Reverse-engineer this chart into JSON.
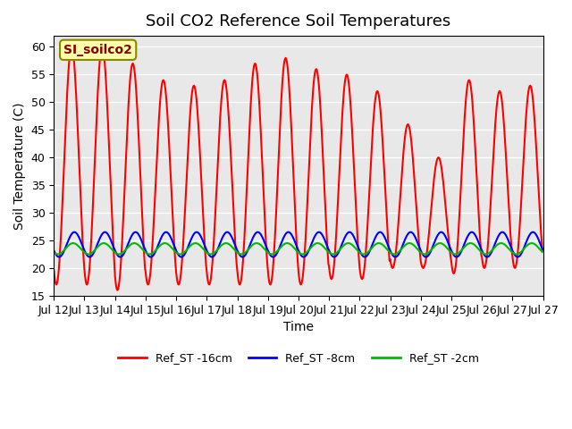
{
  "title": "Soil CO2 Reference Soil Temperatures",
  "xlabel": "Time",
  "ylabel": "Soil Temperature (C)",
  "ylim": [
    15,
    62
  ],
  "yticks": [
    15,
    20,
    25,
    30,
    35,
    40,
    45,
    50,
    55,
    60
  ],
  "legend_label_box": "SI_soilco2",
  "series": {
    "Ref_ST -16cm": {
      "color": "#ff0000",
      "linewidth": 1.5
    },
    "Ref_ST -8cm": {
      "color": "#0000ff",
      "linewidth": 1.5
    },
    "Ref_ST -2cm": {
      "color": "#00bb00",
      "linewidth": 1.5
    }
  },
  "xtick_labels": [
    "Jul 12",
    "Jul 13",
    "Jul 14",
    "Jul 15",
    "Jul 16",
    "Jul 17",
    "Jul 18",
    "Jul 19",
    "Jul 20",
    "Jul 21",
    "Jul 22",
    "Jul 23",
    "Jul 24",
    "Jul 25",
    "Jul 26",
    "Jul 27"
  ],
  "xtick_positions": [
    0,
    1,
    2,
    3,
    4,
    5,
    6,
    7,
    8,
    9,
    10,
    11,
    12,
    13,
    14,
    15
  ],
  "n_days": 16,
  "background_color": "#e8e8e8",
  "plot_bg_color": "#ffffff",
  "grid_color": "#ffffff",
  "annotation_box_color": "#ffffaa",
  "annotation_text_color": "#880000",
  "title_fontsize": 13,
  "axis_label_fontsize": 10,
  "tick_fontsize": 9,
  "peak_mods": [
    60,
    60,
    57,
    54,
    53,
    54,
    57,
    58,
    56,
    55,
    52,
    46,
    40,
    54,
    52,
    53
  ],
  "trough_mods": [
    17,
    17,
    16,
    17,
    17,
    17,
    17,
    17,
    17,
    18,
    18,
    20,
    20,
    19,
    20,
    20
  ]
}
